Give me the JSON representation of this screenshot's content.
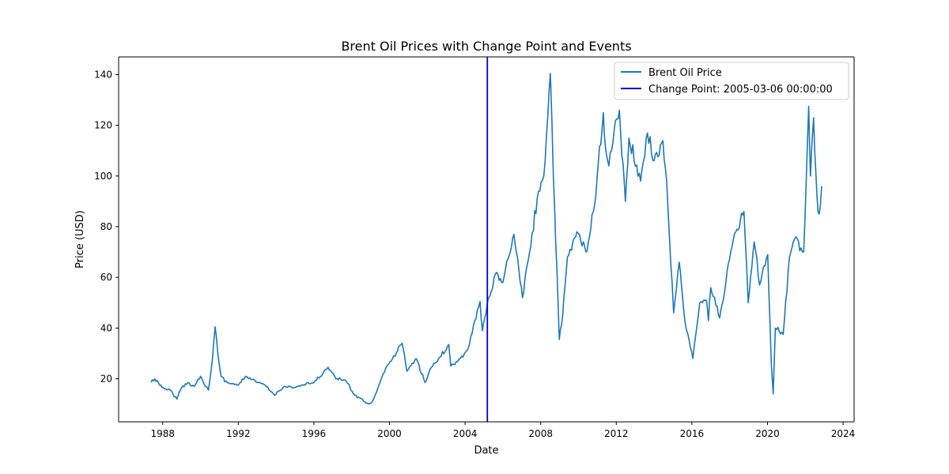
{
  "chart_data": {
    "type": "line",
    "title": "Brent Oil Prices with Change Point and Events",
    "xlabel": "Date",
    "ylabel": "Price (USD)",
    "xlim": [
      "1985-09-01",
      "2024-08-01"
    ],
    "ylim": [
      3,
      147
    ],
    "x_ticks": [
      {
        "date": "1988-01-01",
        "label": "1988"
      },
      {
        "date": "1992-01-01",
        "label": "1992"
      },
      {
        "date": "1996-01-01",
        "label": "1996"
      },
      {
        "date": "2000-01-01",
        "label": "2000"
      },
      {
        "date": "2004-01-01",
        "label": "2004"
      },
      {
        "date": "2008-01-01",
        "label": "2008"
      },
      {
        "date": "2012-01-01",
        "label": "2012"
      },
      {
        "date": "2016-01-01",
        "label": "2016"
      },
      {
        "date": "2020-01-01",
        "label": "2020"
      },
      {
        "date": "2024-01-01",
        "label": "2024"
      }
    ],
    "y_ticks": [
      {
        "value": 20,
        "label": "20"
      },
      {
        "value": 40,
        "label": "40"
      },
      {
        "value": 60,
        "label": "60"
      },
      {
        "value": 80,
        "label": "80"
      },
      {
        "value": 100,
        "label": "100"
      },
      {
        "value": 120,
        "label": "120"
      },
      {
        "value": 140,
        "label": "140"
      }
    ],
    "grid": false,
    "legend_position": "top-right",
    "series": [
      {
        "name": "Brent Oil Price",
        "color": "#1f77b4",
        "points": [
          [
            "1987-05-20",
            18.6
          ],
          [
            "1987-08-01",
            20.0
          ],
          [
            "1987-11-01",
            17.5
          ],
          [
            "1988-03-01",
            16.0
          ],
          [
            "1988-06-01",
            15.5
          ],
          [
            "1988-10-01",
            12.0
          ],
          [
            "1989-01-01",
            16.5
          ],
          [
            "1989-05-01",
            18.5
          ],
          [
            "1989-09-01",
            17.0
          ],
          [
            "1990-01-01",
            21.0
          ],
          [
            "1990-06-01",
            15.5
          ],
          [
            "1990-08-15",
            27.0
          ],
          [
            "1990-10-10",
            40.5
          ],
          [
            "1990-12-01",
            30.0
          ],
          [
            "1991-02-01",
            21.0
          ],
          [
            "1991-06-01",
            18.5
          ],
          [
            "1992-01-01",
            17.5
          ],
          [
            "1992-06-01",
            21.0
          ],
          [
            "1993-01-01",
            18.5
          ],
          [
            "1993-06-01",
            17.5
          ],
          [
            "1993-12-01",
            13.5
          ],
          [
            "1994-06-01",
            17.0
          ],
          [
            "1995-01-01",
            16.5
          ],
          [
            "1995-06-01",
            17.5
          ],
          [
            "1996-01-01",
            18.5
          ],
          [
            "1996-10-01",
            24.5
          ],
          [
            "1997-03-01",
            20.0
          ],
          [
            "1997-09-01",
            19.5
          ],
          [
            "1998-03-01",
            13.5
          ],
          [
            "1998-06-01",
            12.5
          ],
          [
            "1998-12-01",
            10.0
          ],
          [
            "1999-03-01",
            12.0
          ],
          [
            "1999-09-01",
            22.0
          ],
          [
            "2000-03-01",
            28.0
          ],
          [
            "2000-09-01",
            34.0
          ],
          [
            "2000-12-01",
            23.0
          ],
          [
            "2001-06-01",
            28.0
          ],
          [
            "2001-11-20",
            18.5
          ],
          [
            "2002-03-01",
            24.0
          ],
          [
            "2002-09-01",
            28.5
          ],
          [
            "2003-02-20",
            33.5
          ],
          [
            "2003-04-01",
            25.0
          ],
          [
            "2003-10-01",
            28.0
          ],
          [
            "2004-03-01",
            32.0
          ],
          [
            "2004-10-15",
            50.5
          ],
          [
            "2004-12-01",
            39.0
          ],
          [
            "2005-04-01",
            52.0
          ],
          [
            "2005-09-01",
            62.0
          ],
          [
            "2006-01-01",
            58.0
          ],
          [
            "2006-08-01",
            77.0
          ],
          [
            "2007-01-15",
            52.0
          ],
          [
            "2007-06-01",
            70.0
          ],
          [
            "2007-11-20",
            94.0
          ],
          [
            "2008-03-01",
            100.0
          ],
          [
            "2008-07-05",
            140.5
          ],
          [
            "2008-09-01",
            100.0
          ],
          [
            "2008-12-25",
            35.5
          ],
          [
            "2009-03-01",
            45.0
          ],
          [
            "2009-06-01",
            68.0
          ],
          [
            "2009-12-01",
            78.0
          ],
          [
            "2010-05-25",
            70.0
          ],
          [
            "2010-08-01",
            76.0
          ],
          [
            "2010-12-01",
            92.0
          ],
          [
            "2011-04-25",
            125.0
          ],
          [
            "2011-06-01",
            112.0
          ],
          [
            "2011-08-10",
            104.0
          ],
          [
            "2011-10-01",
            110.0
          ],
          [
            "2012-03-01",
            126.0
          ],
          [
            "2012-06-25",
            90.0
          ],
          [
            "2012-09-01",
            115.0
          ],
          [
            "2013-04-15",
            98.0
          ],
          [
            "2013-08-25",
            117.0
          ],
          [
            "2014-01-01",
            106.0
          ],
          [
            "2014-06-20",
            114.0
          ],
          [
            "2014-09-01",
            98.0
          ],
          [
            "2015-01-13",
            46.0
          ],
          [
            "2015-05-01",
            66.0
          ],
          [
            "2015-08-25",
            42.0
          ],
          [
            "2016-01-20",
            28.0
          ],
          [
            "2016-06-01",
            50.0
          ],
          [
            "2016-10-10",
            51.0
          ],
          [
            "2016-11-15",
            43.0
          ],
          [
            "2017-01-01",
            56.0
          ],
          [
            "2017-06-20",
            44.0
          ],
          [
            "2018-01-20",
            70.0
          ],
          [
            "2018-05-20",
            79.0
          ],
          [
            "2018-10-03",
            86.0
          ],
          [
            "2018-12-25",
            50.0
          ],
          [
            "2019-04-20",
            74.0
          ],
          [
            "2019-08-01",
            57.0
          ],
          [
            "2020-01-06",
            69.0
          ],
          [
            "2020-03-15",
            26.0
          ],
          [
            "2020-04-21",
            14.0
          ],
          [
            "2020-06-01",
            40.0
          ],
          [
            "2020-10-30",
            37.5
          ],
          [
            "2021-03-01",
            68.0
          ],
          [
            "2021-07-01",
            76.0
          ],
          [
            "2021-12-01",
            70.0
          ],
          [
            "2022-03-08",
            127.5
          ],
          [
            "2022-04-10",
            100.0
          ],
          [
            "2022-06-10",
            123.0
          ],
          [
            "2022-08-15",
            92.0
          ],
          [
            "2022-09-26",
            85.0
          ],
          [
            "2022-11-14",
            96.0
          ]
        ]
      }
    ],
    "change_point": {
      "date": "2005-03-06",
      "label": "Change Point: 2005-03-06 00:00:00",
      "color": "#0000cd"
    }
  }
}
